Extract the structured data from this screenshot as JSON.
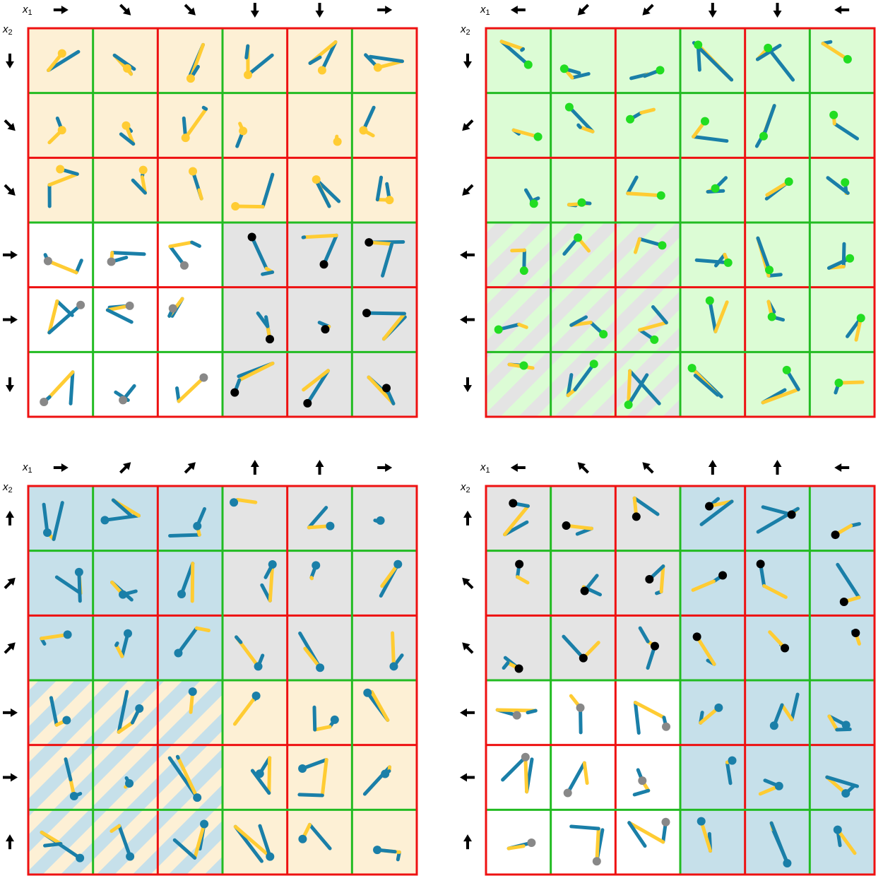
{
  "panels": [
    {
      "x_axis": {
        "symbol": "x",
        "subscript": "1"
      },
      "y_axis": {
        "symbol": "x",
        "subscript": "2"
      }
    },
    {
      "x_axis": {
        "symbol": "x",
        "subscript": "1"
      },
      "y_axis": {
        "symbol": "x",
        "subscript": "2"
      }
    },
    {
      "x_axis": {
        "symbol": "x",
        "subscript": "1"
      },
      "y_axis": {
        "symbol": "x",
        "subscript": "2"
      }
    },
    {
      "x_axis": {
        "symbol": "x",
        "subscript": "1"
      },
      "y_axis": {
        "symbol": "x",
        "subscript": "2"
      }
    }
  ]
}
